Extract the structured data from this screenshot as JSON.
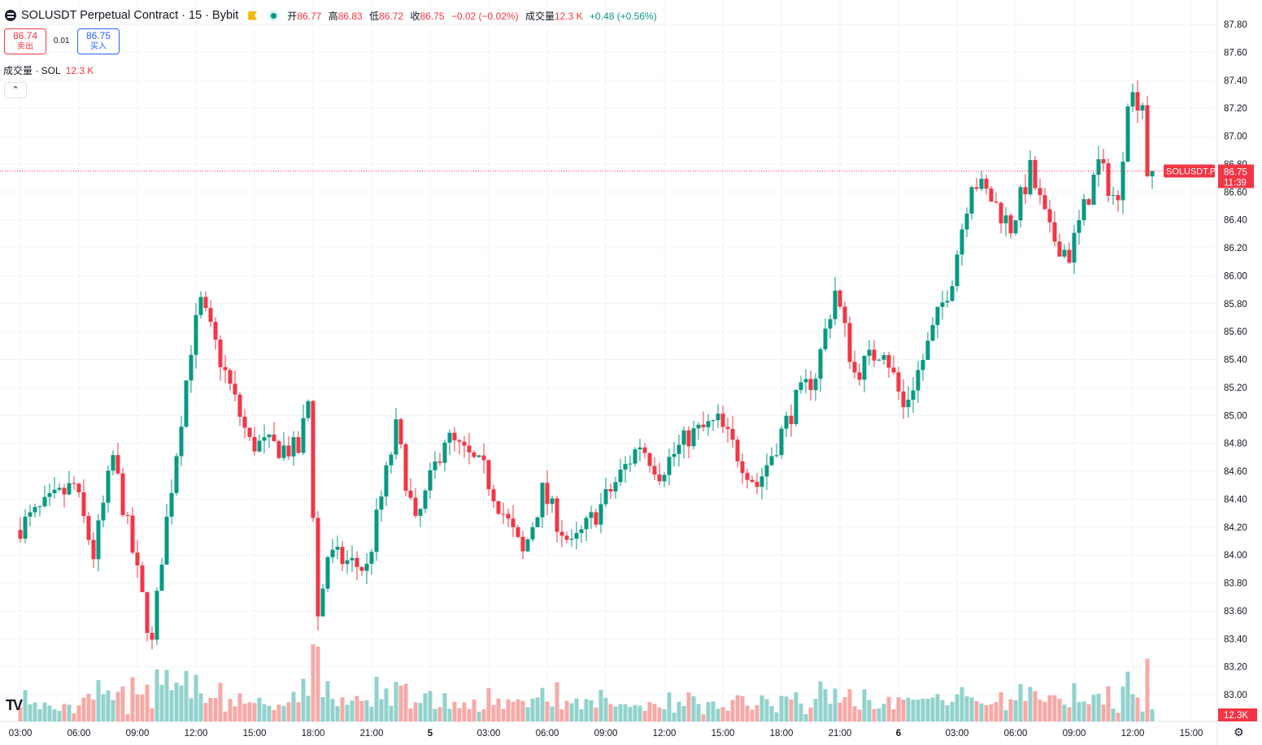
{
  "header": {
    "symbol_title": "SOLUSDT Perpetual Contract · 15 · Bybit",
    "open_label": "开",
    "open": "86.77",
    "high_label": "高",
    "high": "86.83",
    "low_label": "低",
    "low": "86.72",
    "close_label": "收",
    "close": "86.75",
    "change": "−0.02 (−0.02%)",
    "volume_label": "成交量",
    "volume": "12.3 K",
    "volume_change": "+0.48 (+0.56%)"
  },
  "trade": {
    "sell_price": "86.74",
    "sell_label": "卖出",
    "spread": "0.01",
    "buy_price": "86.75",
    "buy_label": "买入"
  },
  "volume_indicator": {
    "label": "成交量 · SOL",
    "value": "12.3 K"
  },
  "collapse_icon": "chevron-up-icon",
  "price_tag": {
    "symbol": "SOLUSDT.P",
    "price": "86.75",
    "countdown": "11:39"
  },
  "volume_tag": "12.3K",
  "colors": {
    "up": "#089981",
    "down": "#f23645",
    "vol_up": "#92d2cc",
    "vol_down": "#f7a9a7",
    "grid": "#f0f3fa",
    "axis_text": "#131722"
  },
  "chart_data": {
    "type": "candlestick",
    "interval": "15m",
    "price_axis": {
      "ylim": [
        82.9,
        87.9
      ],
      "ticks": [
        "87.80",
        "87.60",
        "87.40",
        "87.20",
        "87.00",
        "86.80",
        "86.60",
        "86.40",
        "86.20",
        "86.00",
        "85.80",
        "85.60",
        "85.40",
        "85.20",
        "85.00",
        "84.80",
        "84.60",
        "84.40",
        "84.20",
        "84.00",
        "83.80",
        "83.60",
        "83.40",
        "83.20",
        "83.00"
      ]
    },
    "time_axis": {
      "ticks": [
        "03:00",
        "06:00",
        "09:00",
        "12:00",
        "15:00",
        "18:00",
        "21:00",
        "5",
        "03:00",
        "06:00",
        "09:00",
        "12:00",
        "15:00",
        "18:00",
        "21:00",
        "6",
        "03:00",
        "06:00",
        "09:00",
        "12:00",
        "15:00"
      ]
    },
    "last_price": 86.75,
    "keypoints": [
      {
        "t": "03:00",
        "price": 84.18
      },
      {
        "t": "06:00",
        "price": 84.5
      },
      {
        "t": "07:00",
        "price": 84.0
      },
      {
        "t": "08:00",
        "price": 84.7
      },
      {
        "t": "10:00",
        "price": 83.35
      },
      {
        "t": "10:30",
        "price": 84.0
      },
      {
        "t": "12:00",
        "price": 85.5
      },
      {
        "t": "12:30",
        "price": 85.8
      },
      {
        "t": "14:00",
        "price": 85.2
      },
      {
        "t": "15:00",
        "price": 84.8
      },
      {
        "t": "17:30",
        "price": 84.75
      },
      {
        "t": "18:00",
        "price": 85.1
      },
      {
        "t": "18:30",
        "price": 83.55
      },
      {
        "t": "19:00",
        "price": 84.0
      },
      {
        "t": "21:00",
        "price": 83.9
      },
      {
        "t": "21:30",
        "price": 84.25
      },
      {
        "t": "22:30",
        "price": 84.9
      },
      {
        "t": "23:30",
        "price": 84.2
      },
      {
        "t": "5 01:00",
        "price": 84.85
      },
      {
        "t": "03:00",
        "price": 84.6
      },
      {
        "t": "05:00",
        "price": 84.0
      },
      {
        "t": "06:00",
        "price": 84.45
      },
      {
        "t": "07:30",
        "price": 84.05
      },
      {
        "t": "09:00",
        "price": 84.35
      },
      {
        "t": "11:00",
        "price": 84.8
      },
      {
        "t": "12:00",
        "price": 84.6
      },
      {
        "t": "13:30",
        "price": 84.85
      },
      {
        "t": "15:00",
        "price": 84.95
      },
      {
        "t": "17:00",
        "price": 84.5
      },
      {
        "t": "18:00",
        "price": 84.8
      },
      {
        "t": "19:00",
        "price": 85.1
      },
      {
        "t": "20:00",
        "price": 85.3
      },
      {
        "t": "21:00",
        "price": 85.9
      },
      {
        "t": "22:00",
        "price": 85.3
      },
      {
        "t": "23:30",
        "price": 85.5
      },
      {
        "t": "6 00:30",
        "price": 85.05
      },
      {
        "t": "01:30",
        "price": 85.4
      },
      {
        "t": "03:00",
        "price": 86.0
      },
      {
        "t": "04:00",
        "price": 86.7
      },
      {
        "t": "05:00",
        "price": 86.55
      },
      {
        "t": "06:00",
        "price": 86.35
      },
      {
        "t": "07:00",
        "price": 86.75
      },
      {
        "t": "08:00",
        "price": 86.3
      },
      {
        "t": "09:00",
        "price": 86.15
      },
      {
        "t": "10:30",
        "price": 86.8
      },
      {
        "t": "11:30",
        "price": 86.5
      },
      {
        "t": "12:00",
        "price": 87.3
      },
      {
        "t": "12:45",
        "price": 87.25
      },
      {
        "t": "13:00",
        "price": 86.75
      }
    ],
    "volume_axis_last": "12.3K"
  }
}
